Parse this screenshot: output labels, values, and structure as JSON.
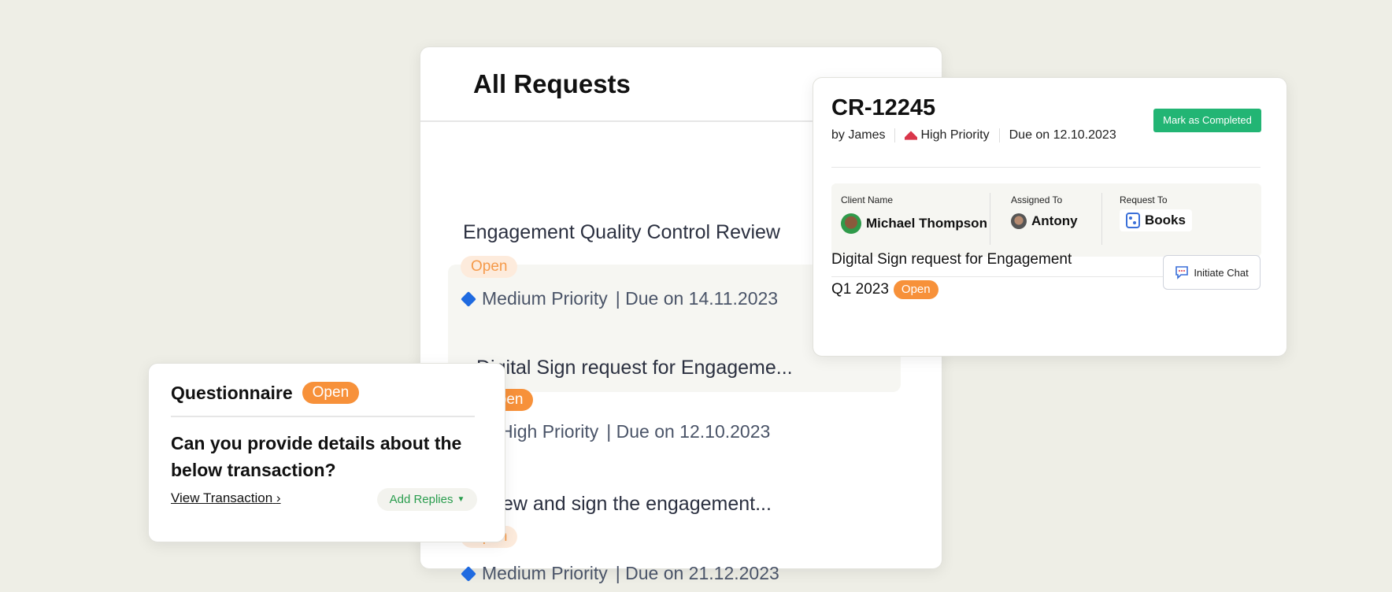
{
  "all_requests": {
    "title": "All Requests",
    "items": [
      {
        "title": "Engagement Quality Control Review",
        "status": "Open",
        "priority": "Medium Priority",
        "due": "| Due on 14.11.2023"
      },
      {
        "title": "Digital Sign request for Engageme...",
        "status": "Open",
        "priority": "High Priority",
        "due": "| Due on 12.10.2023"
      },
      {
        "title": "Review and sign the engagement...",
        "status": "Open",
        "priority": "Medium Priority",
        "due": "| Due on 21.12.2023"
      }
    ]
  },
  "detail": {
    "id": "CR-12245",
    "by": "by James",
    "priority": "High Priority",
    "due": "Due on 12.10.2023",
    "mark_completed": "Mark as Completed",
    "client_label": "Client Name",
    "client": "Michael Thompson",
    "assigned_label": "Assigned To",
    "assigned": "Antony",
    "request_label": "Request To",
    "request_to": "Books",
    "task_title_1": "Digital Sign request for Engagement",
    "task_title_2": "Q1 2023",
    "task_status": "Open",
    "initiate_chat": "Initiate Chat"
  },
  "questionnaire": {
    "title": "Questionnaire",
    "status": "Open",
    "question": "Can you provide details about the below transaction?",
    "view_transaction": "View Transaction",
    "add_replies": "Add Replies"
  },
  "colors": {
    "open": "#f7913a",
    "complete": "#22b574",
    "medium": "#1f6ae0",
    "high": "#d9364a"
  }
}
